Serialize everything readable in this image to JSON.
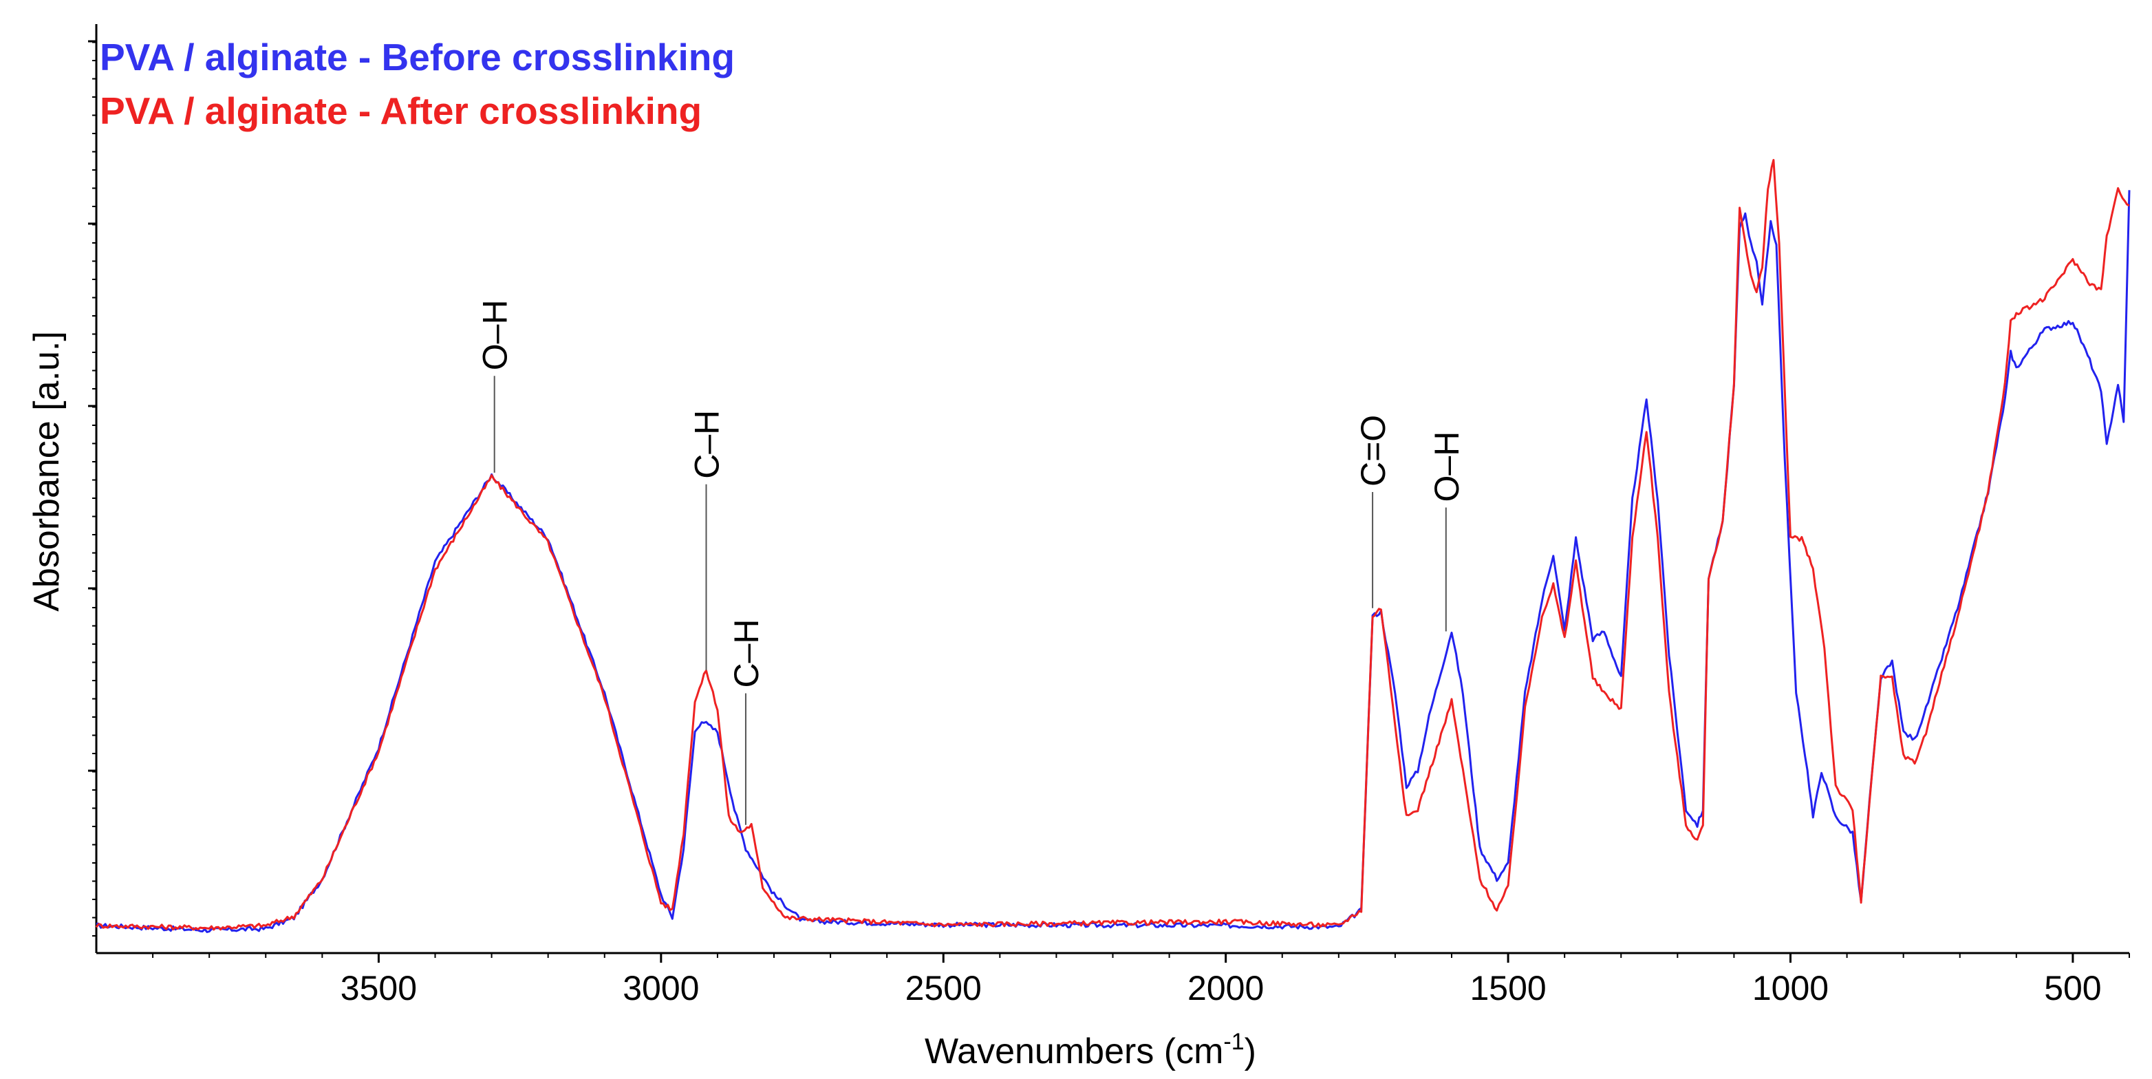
{
  "chart_data": {
    "type": "line",
    "xlabel": "Wavenumbers (cm",
    "xlabel_superscript": "-1",
    "xlabel_suffix": ")",
    "ylabel": "Absorbance [a.u.]",
    "xlim": [
      4000,
      400
    ],
    "ylim": [
      0,
      1
    ],
    "x_ticks": [
      3500,
      3000,
      2500,
      2000,
      1500,
      1000,
      500
    ],
    "x_tick_labels": [
      "3500",
      "3000",
      "2500",
      "2000",
      "1500",
      "1000",
      "500"
    ],
    "legend": [
      "PVA / alginate - Before crosslinking",
      "PVA / alginate - After crosslinking"
    ],
    "series": [
      {
        "name": "PVA / alginate - Before crosslinking",
        "color": "#2222ee",
        "points": [
          [
            4000,
            0.0
          ],
          [
            3800,
            -0.006
          ],
          [
            3700,
            -0.004
          ],
          [
            3650,
            0.01
          ],
          [
            3600,
            0.06
          ],
          [
            3500,
            0.23
          ],
          [
            3400,
            0.47
          ],
          [
            3300,
            0.582
          ],
          [
            3200,
            0.5
          ],
          [
            3100,
            0.3
          ],
          [
            3000,
            0.04
          ],
          [
            2980,
            0.01
          ],
          [
            2960,
            0.1
          ],
          [
            2940,
            0.25
          ],
          [
            2928,
            0.265
          ],
          [
            2900,
            0.25
          ],
          [
            2870,
            0.15
          ],
          [
            2850,
            0.1
          ],
          [
            2800,
            0.04
          ],
          [
            2750,
            0.006
          ],
          [
            2500,
            0.001
          ],
          [
            2000,
            0.0
          ],
          [
            1800,
            -0.002
          ],
          [
            1760,
            0.02
          ],
          [
            1740,
            0.4
          ],
          [
            1725,
            0.405
          ],
          [
            1700,
            0.3
          ],
          [
            1680,
            0.18
          ],
          [
            1660,
            0.2
          ],
          [
            1640,
            0.27
          ],
          [
            1600,
            0.38
          ],
          [
            1580,
            0.3
          ],
          [
            1550,
            0.1
          ],
          [
            1520,
            0.06
          ],
          [
            1500,
            0.08
          ],
          [
            1470,
            0.3
          ],
          [
            1440,
            0.42
          ],
          [
            1420,
            0.48
          ],
          [
            1400,
            0.38
          ],
          [
            1380,
            0.5
          ],
          [
            1350,
            0.37
          ],
          [
            1330,
            0.38
          ],
          [
            1300,
            0.32
          ],
          [
            1280,
            0.55
          ],
          [
            1255,
            0.68
          ],
          [
            1235,
            0.55
          ],
          [
            1215,
            0.35
          ],
          [
            1185,
            0.15
          ],
          [
            1165,
            0.13
          ],
          [
            1155,
            0.15
          ],
          [
            1145,
            0.45
          ],
          [
            1120,
            0.52
          ],
          [
            1100,
            0.7
          ],
          [
            1090,
            0.9
          ],
          [
            1080,
            0.92
          ],
          [
            1070,
            0.88
          ],
          [
            1060,
            0.86
          ],
          [
            1050,
            0.8
          ],
          [
            1035,
            0.91
          ],
          [
            1025,
            0.88
          ],
          [
            1010,
            0.6
          ],
          [
            990,
            0.3
          ],
          [
            970,
            0.2
          ],
          [
            960,
            0.14
          ],
          [
            945,
            0.2
          ],
          [
            920,
            0.14
          ],
          [
            890,
            0.12
          ],
          [
            875,
            0.03
          ],
          [
            860,
            0.16
          ],
          [
            840,
            0.32
          ],
          [
            820,
            0.34
          ],
          [
            800,
            0.25
          ],
          [
            780,
            0.24
          ],
          [
            760,
            0.28
          ],
          [
            700,
            0.42
          ],
          [
            650,
            0.56
          ],
          [
            620,
            0.68
          ],
          [
            610,
            0.74
          ],
          [
            600,
            0.72
          ],
          [
            550,
            0.77
          ],
          [
            500,
            0.78
          ],
          [
            470,
            0.73
          ],
          [
            450,
            0.69
          ],
          [
            440,
            0.62
          ],
          [
            420,
            0.7
          ],
          [
            410,
            0.65
          ],
          [
            400,
            0.95
          ]
        ]
      },
      {
        "name": "PVA / alginate - After crosslinking",
        "color": "#ee2222",
        "points": [
          [
            4000,
            0.0
          ],
          [
            3800,
            -0.003
          ],
          [
            3700,
            0.0
          ],
          [
            3650,
            0.012
          ],
          [
            3600,
            0.06
          ],
          [
            3500,
            0.225
          ],
          [
            3400,
            0.46
          ],
          [
            3300,
            0.58
          ],
          [
            3200,
            0.495
          ],
          [
            3100,
            0.295
          ],
          [
            3000,
            0.03
          ],
          [
            2980,
            0.02
          ],
          [
            2960,
            0.12
          ],
          [
            2940,
            0.29
          ],
          [
            2920,
            0.33
          ],
          [
            2900,
            0.28
          ],
          [
            2880,
            0.14
          ],
          [
            2860,
            0.12
          ],
          [
            2840,
            0.13
          ],
          [
            2820,
            0.05
          ],
          [
            2780,
            0.01
          ],
          [
            2500,
            0.001
          ],
          [
            2000,
            0.005
          ],
          [
            1800,
            0.0
          ],
          [
            1760,
            0.02
          ],
          [
            1740,
            0.4
          ],
          [
            1725,
            0.41
          ],
          [
            1700,
            0.26
          ],
          [
            1680,
            0.14
          ],
          [
            1660,
            0.15
          ],
          [
            1630,
            0.22
          ],
          [
            1600,
            0.29
          ],
          [
            1580,
            0.2
          ],
          [
            1550,
            0.06
          ],
          [
            1520,
            0.02
          ],
          [
            1500,
            0.05
          ],
          [
            1470,
            0.28
          ],
          [
            1440,
            0.4
          ],
          [
            1420,
            0.44
          ],
          [
            1400,
            0.37
          ],
          [
            1380,
            0.47
          ],
          [
            1350,
            0.32
          ],
          [
            1330,
            0.3
          ],
          [
            1300,
            0.28
          ],
          [
            1280,
            0.5
          ],
          [
            1255,
            0.64
          ],
          [
            1235,
            0.5
          ],
          [
            1215,
            0.3
          ],
          [
            1185,
            0.13
          ],
          [
            1165,
            0.11
          ],
          [
            1155,
            0.13
          ],
          [
            1145,
            0.45
          ],
          [
            1120,
            0.52
          ],
          [
            1100,
            0.7
          ],
          [
            1090,
            0.93
          ],
          [
            1080,
            0.88
          ],
          [
            1070,
            0.84
          ],
          [
            1060,
            0.82
          ],
          [
            1050,
            0.85
          ],
          [
            1040,
            0.95
          ],
          [
            1030,
            0.99
          ],
          [
            1020,
            0.88
          ],
          [
            1000,
            0.5
          ],
          [
            980,
            0.5
          ],
          [
            970,
            0.48
          ],
          [
            960,
            0.46
          ],
          [
            940,
            0.36
          ],
          [
            920,
            0.18
          ],
          [
            890,
            0.15
          ],
          [
            875,
            0.03
          ],
          [
            860,
            0.16
          ],
          [
            840,
            0.32
          ],
          [
            820,
            0.32
          ],
          [
            800,
            0.22
          ],
          [
            780,
            0.21
          ],
          [
            760,
            0.25
          ],
          [
            700,
            0.41
          ],
          [
            650,
            0.56
          ],
          [
            620,
            0.7
          ],
          [
            610,
            0.78
          ],
          [
            600,
            0.79
          ],
          [
            550,
            0.81
          ],
          [
            500,
            0.86
          ],
          [
            470,
            0.83
          ],
          [
            450,
            0.82
          ],
          [
            440,
            0.89
          ],
          [
            420,
            0.95
          ],
          [
            400,
            0.93
          ]
        ]
      }
    ],
    "annotations": [
      {
        "label": "O–H",
        "x": 3295,
        "y_top": 0.71,
        "y_bottom": 0.585
      },
      {
        "label": "C–H",
        "x": 2920,
        "y_top": 0.57,
        "y_bottom": 0.33
      },
      {
        "label": "C–H",
        "x": 2850,
        "y_top": 0.3,
        "y_bottom": 0.13
      },
      {
        "label": "C=O",
        "x": 1740,
        "y_top": 0.56,
        "y_bottom": 0.41
      },
      {
        "label": "O–H",
        "x": 1610,
        "y_top": 0.54,
        "y_bottom": 0.38
      }
    ]
  }
}
